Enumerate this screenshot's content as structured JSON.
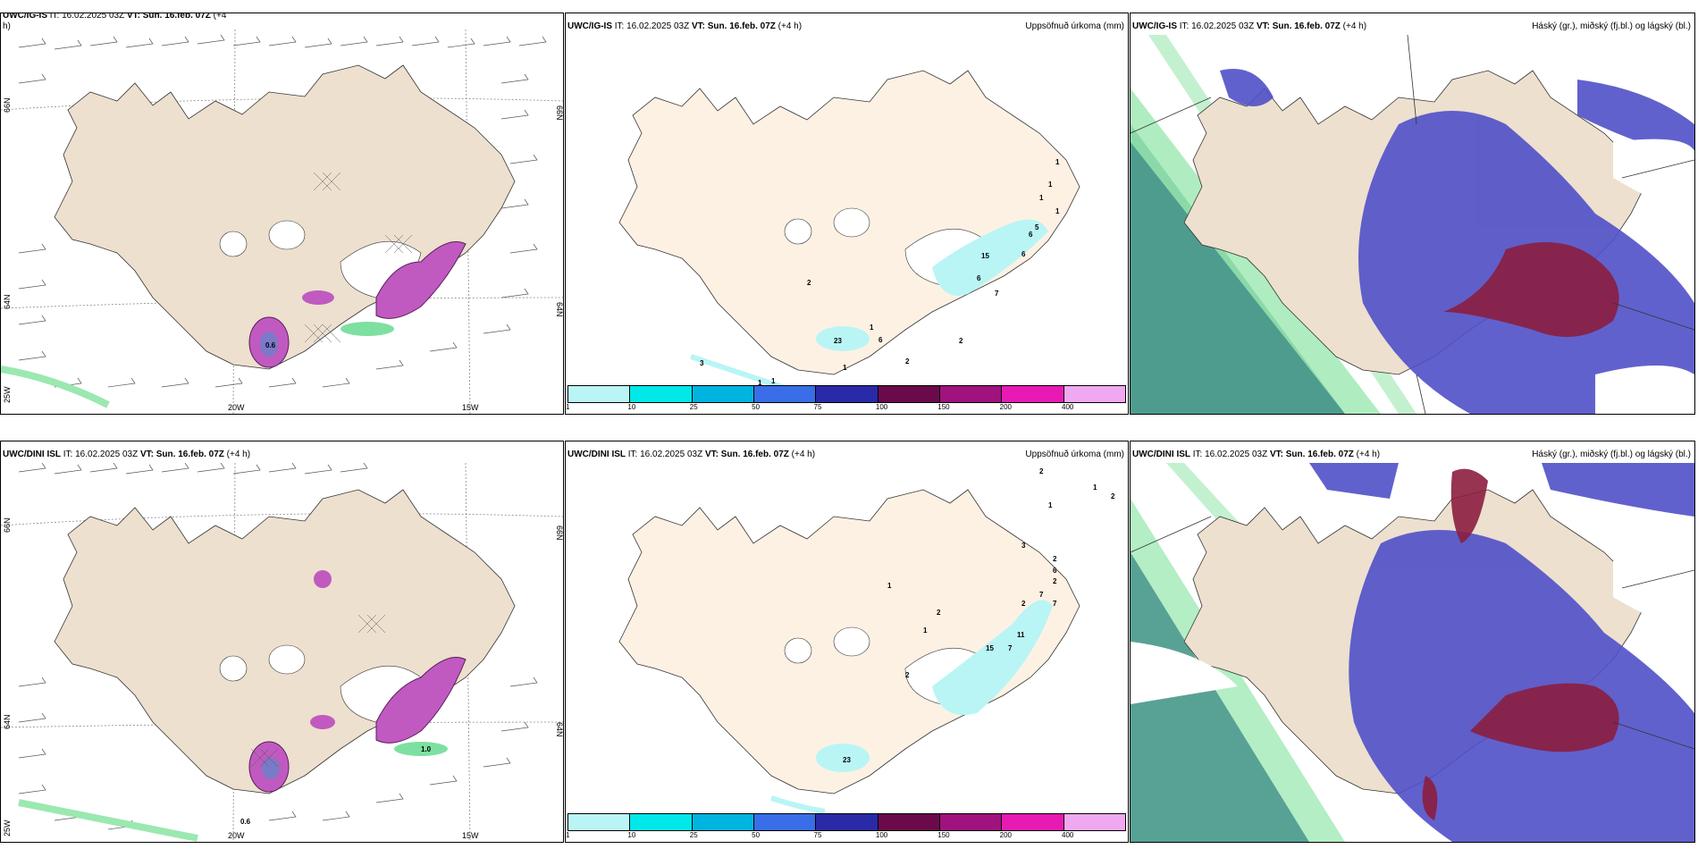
{
  "colors": {
    "land": "#ede0cf",
    "land_light": "#fdf1e4",
    "precip_light": "#b9f5f5",
    "wind_green": "#7ee0a0",
    "magenta": "#c05ac0",
    "cloud_blue": "#5050c8",
    "cloud_red": "#8b1e3f",
    "cloud_teal": "#2e8b7a",
    "cloud_green": "#9be8b0"
  },
  "rows": [
    {
      "panels": [
        {
          "model": "UWC/IG-IS",
          "it_label": "IT: 16.02.2025 03Z",
          "vt_label": "VT: Sun. 16.feb. 07Z",
          "lead": "(+4",
          "lead2": "h)",
          "right_title": "",
          "labels": [
            "66N",
            "64N",
            "20W",
            "15W",
            "25W",
            "66N",
            "64N"
          ],
          "contour_values": [
            "0.6"
          ]
        },
        {
          "model": "UWC/IG-IS",
          "it_label": "IT: 16.02.2025 03Z",
          "vt_label": "VT: Sun. 16.feb. 07Z",
          "lead": "(+4 h)",
          "right_title": "Uppsöfnuð úrkoma (mm)",
          "contour_values": [
            "1",
            "1",
            "1",
            "1",
            "5",
            "6",
            "6",
            "15",
            "6",
            "7",
            "2",
            "1",
            "6",
            "2",
            "2",
            "1",
            "3",
            "1",
            "1",
            "23"
          ]
        },
        {
          "model": "UWC/IG-IS",
          "it_label": "IT: 16.02.2025 03Z",
          "vt_label": "VT: Sun. 16.feb. 07Z",
          "lead": "(+4 h)",
          "right_title": "Háský (gr.), miðský (fj.bl.) og lágský (bl.)"
        }
      ]
    },
    {
      "panels": [
        {
          "model": "UWC/DINI ISL",
          "it_label": "IT: 16.02.2025 03Z",
          "vt_label": "VT: Sun. 16.feb. 07Z",
          "lead": "(+4 h)",
          "right_title": "",
          "labels": [
            "66N",
            "64N",
            "20W",
            "15W",
            "25W",
            "66N",
            "64N"
          ],
          "contour_values": [
            "0.6",
            "1.0"
          ]
        },
        {
          "model": "UWC/DINI ISL",
          "it_label": "IT: 16.02.2025 03Z",
          "vt_label": "VT: Sun. 16.feb. 07Z",
          "lead": "(+4 h)",
          "right_title": "Uppsöfnuð úrkoma (mm)",
          "contour_values": [
            "2",
            "1",
            "2",
            "1",
            "3",
            "2",
            "6",
            "2",
            "7",
            "7",
            "2",
            "11",
            "7",
            "15",
            "1",
            "2",
            "1",
            "2",
            "23"
          ]
        },
        {
          "model": "UWC/DINI ISL",
          "it_label": "IT: 16.02.2025 03Z",
          "vt_label": "VT: Sun. 16.feb. 07Z",
          "lead": "(+4 h)",
          "right_title": "Háský (gr.), miðský (fj.bl.) og lágský (bl.)"
        }
      ]
    }
  ],
  "colorbar": {
    "ticks": [
      "1",
      "10",
      "25",
      "50",
      "75",
      "100",
      "150",
      "200",
      "400"
    ],
    "colors": [
      "#b9f5f5",
      "#00e8e8",
      "#00b4e0",
      "#3a6ee8",
      "#2a2aa8",
      "#6a0a4a",
      "#a0127e",
      "#e81ab4",
      "#f0a8f0"
    ]
  }
}
